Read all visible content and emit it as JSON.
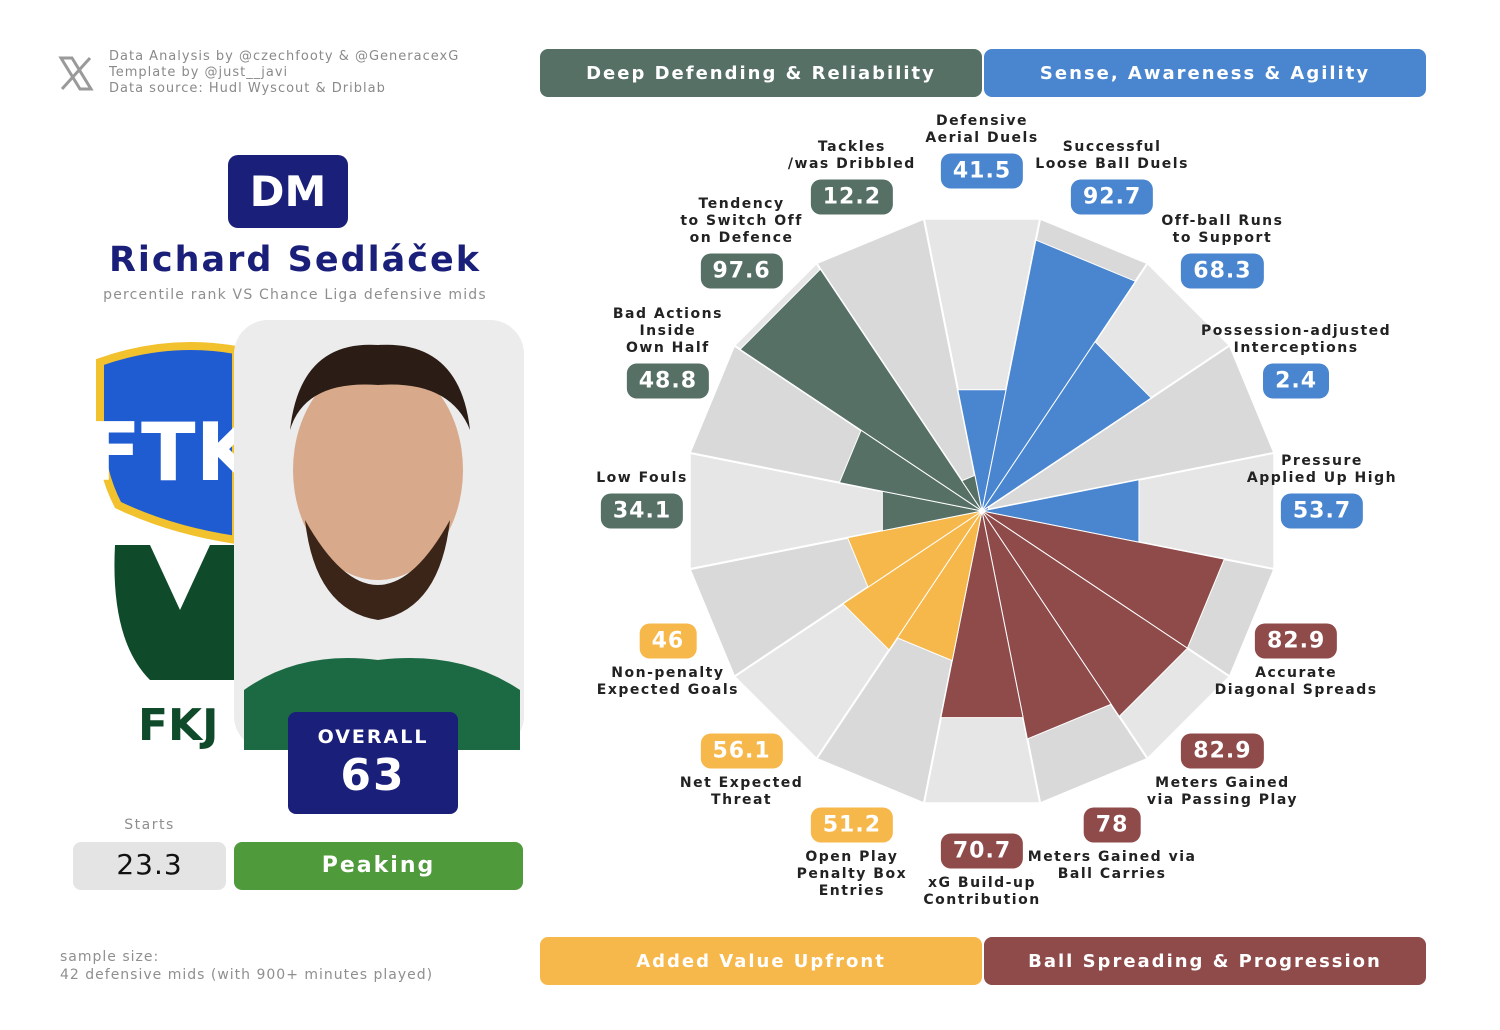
{
  "header": {
    "credits": [
      "Data Analysis by @czechfooty & @GeneracexG",
      "Template by @just__javi",
      "Data source: Hudl Wyscout & Driblab"
    ],
    "position": "DM",
    "player": "Richard Sedláček",
    "subtitle": "percentile rank VS Chance Liga defensive mids"
  },
  "overall": {
    "label": "OVERALL",
    "value": 63
  },
  "starts": {
    "label": "Starts",
    "value": 23.3
  },
  "form": "Peaking",
  "sample": [
    "sample size:",
    "42 defensive mids (with 900+ minutes played)"
  ],
  "chart_data": {
    "type": "pizza",
    "ylim": [
      0,
      100
    ],
    "series": [
      {
        "name": "Sense, Awareness & Agility",
        "color": "#4a86cf",
        "categories": [
          "Defensive\nAerial Duels",
          "Successful\nLoose Ball Duels",
          "Off-ball Runs\nto Support",
          "Possession-adjusted\nInterceptions",
          "Pressure\nApplied Up High"
        ],
        "values": [
          41.5,
          92.7,
          68.3,
          2.4,
          53.7
        ]
      },
      {
        "name": "Ball Spreading & Progression",
        "color": "#8f4a4a",
        "categories": [
          "Accurate\nDiagonal Spreads",
          "Meters Gained\nvia Passing Play",
          "Meters Gained via\nBall Carries",
          "xG Build-up\nContribution"
        ],
        "values": [
          82.9,
          82.9,
          78,
          70.7
        ]
      },
      {
        "name": "Added Value Upfront",
        "color": "#f7b84b",
        "categories": [
          "Open Play\nPenalty Box\nEntries",
          "Net Expected\nThreat",
          "Non-penalty\nExpected Goals"
        ],
        "values": [
          51.2,
          56.1,
          46
        ]
      },
      {
        "name": "Deep Defending & Reliability",
        "color": "#567066",
        "categories": [
          "Low Fouls",
          "Bad Actions\nInside\nOwn Half",
          "Tendency\nto Switch Off\non Defence",
          "Tackles\n/was Dribbled"
        ],
        "values": [
          34.1,
          48.8,
          97.6,
          12.2
        ]
      }
    ]
  }
}
